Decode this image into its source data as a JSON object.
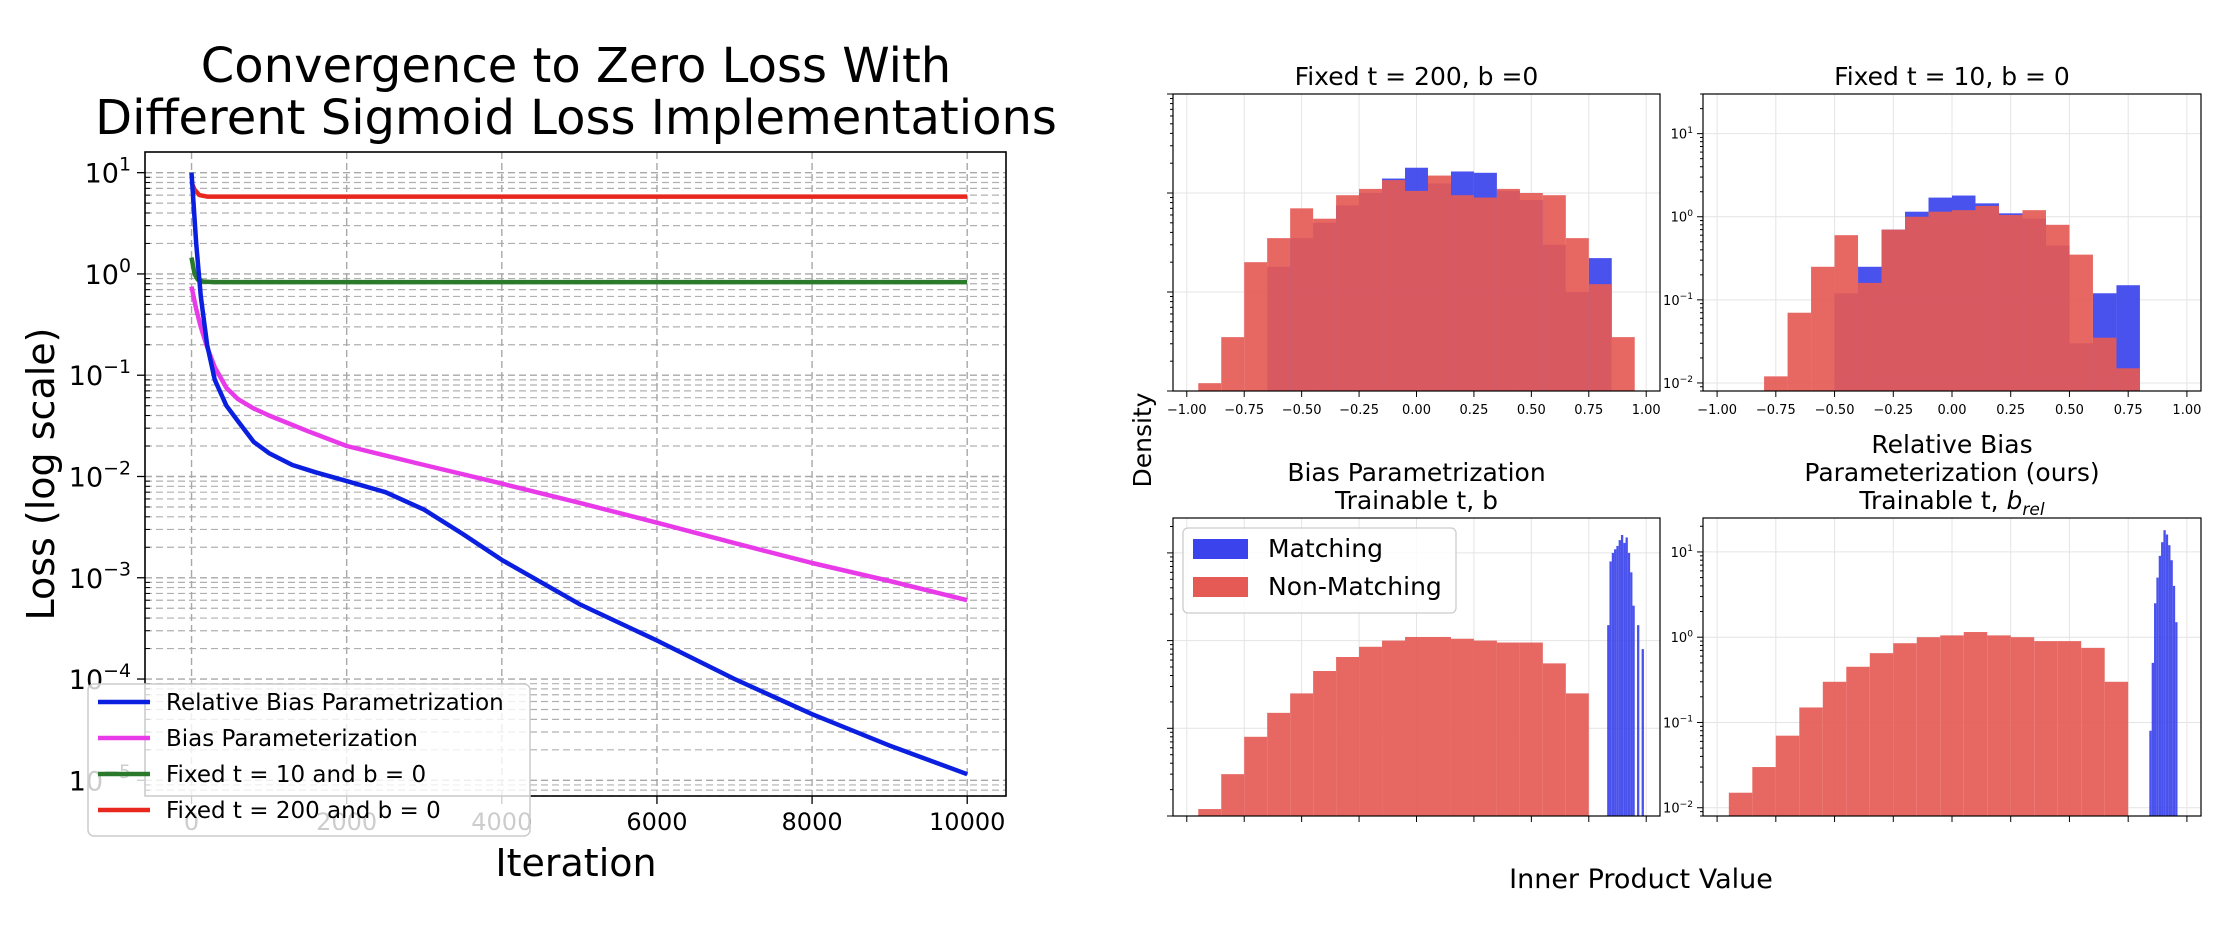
{
  "chart_data": [
    {
      "type": "line",
      "title": [
        "Convergence to Zero Loss With",
        "Different Sigmoid Loss Implementations"
      ],
      "xlabel": "Iteration",
      "ylabel": "Loss (log scale)",
      "yscale": "log",
      "xlim": [
        -600,
        10500
      ],
      "ylim": [
        7e-06,
        16
      ],
      "xticks": [
        0,
        2000,
        4000,
        6000,
        8000,
        10000
      ],
      "xtick_labels": [
        "0",
        "2000",
        "4000",
        "6000",
        "8000",
        "10000"
      ],
      "yticks": [
        1e-05,
        0.0001,
        0.001,
        0.01,
        0.1,
        1,
        10
      ],
      "ytick_labels": [
        {
          "base": "10",
          "exp": "−5"
        },
        {
          "base": "10",
          "exp": "−4"
        },
        {
          "base": "10",
          "exp": "−3"
        },
        {
          "base": "10",
          "exp": "−2"
        },
        {
          "base": "10",
          "exp": "−1"
        },
        {
          "base": "10",
          "exp": "0"
        },
        {
          "base": "10",
          "exp": "1"
        }
      ],
      "grid": true,
      "legend_position": "lower-left",
      "series": [
        {
          "name": "Relative Bias Parametrization",
          "color": "#0b1fe0",
          "x": [
            0,
            60,
            120,
            200,
            300,
            450,
            600,
            800,
            1000,
            1300,
            1600,
            2000,
            2500,
            3000,
            3500,
            4000,
            5000,
            6000,
            7000,
            8000,
            9000,
            10000
          ],
          "y": [
            10,
            2.0,
            0.6,
            0.2,
            0.09,
            0.05,
            0.035,
            0.022,
            0.017,
            0.013,
            0.011,
            0.009,
            0.007,
            0.0047,
            0.0027,
            0.0015,
            0.00055,
            0.00024,
            0.0001,
            4.5e-05,
            2.2e-05,
            1.15e-05
          ]
        },
        {
          "name": "Bias Parameterization",
          "color": "#e83ae8",
          "x": [
            0,
            60,
            120,
            200,
            300,
            450,
            600,
            800,
            1000,
            1500,
            2000,
            3000,
            4000,
            5000,
            6000,
            7000,
            8000,
            9000,
            10000
          ],
          "y": [
            0.75,
            0.45,
            0.3,
            0.19,
            0.12,
            0.075,
            0.058,
            0.047,
            0.04,
            0.028,
            0.02,
            0.013,
            0.0085,
            0.0055,
            0.0035,
            0.0022,
            0.0014,
            0.00093,
            0.0006
          ]
        },
        {
          "name": "Fixed t = 10 and b = 0",
          "color": "#2b7a2b",
          "x": [
            0,
            40,
            80,
            150,
            300,
            1000,
            10000
          ],
          "y": [
            1.45,
            1.0,
            0.88,
            0.84,
            0.83,
            0.83,
            0.83
          ]
        },
        {
          "name": "Fixed t = 200 and b = 0",
          "color": "#e8281e",
          "x": [
            0,
            40,
            100,
            200,
            400,
            10000
          ],
          "y": [
            8.0,
            6.8,
            6.0,
            5.8,
            5.8,
            5.8
          ]
        }
      ]
    },
    {
      "type": "histogram",
      "title": [
        "Fixed t = 200, b =0"
      ],
      "yscale": "log",
      "xticks": [
        -1.0,
        -0.75,
        -0.5,
        -0.25,
        0.0,
        0.25,
        0.5,
        0.75,
        1.0
      ],
      "xtick_labels": [
        "−1.00",
        "−0.75",
        "−0.50",
        "−0.25",
        "0.00",
        "0.25",
        "0.50",
        "0.75",
        "1.00"
      ],
      "show_xtick_labels": true,
      "show_ytick_labels": false,
      "ylim": [
        0.01,
        10
      ],
      "series": [
        {
          "name": "Matching",
          "color": "#3b43ec",
          "bin_edges": [
            -0.65,
            -0.55,
            -0.45,
            -0.35,
            -0.25,
            -0.15,
            -0.05,
            0.05,
            0.15,
            0.25,
            0.35,
            0.45,
            0.55,
            0.65,
            0.75,
            0.85
          ],
          "heights": [
            0.18,
            0.35,
            0.5,
            0.75,
            1.0,
            1.4,
            1.8,
            1.25,
            1.65,
            1.6,
            1.05,
            0.85,
            0.3,
            0.1,
            0.22
          ]
        },
        {
          "name": "Non-Matching",
          "color": "#e55a55",
          "bin_edges": [
            -0.95,
            -0.85,
            -0.75,
            -0.65,
            -0.55,
            -0.45,
            -0.35,
            -0.25,
            -0.15,
            -0.05,
            0.05,
            0.15,
            0.25,
            0.35,
            0.45,
            0.55,
            0.65,
            0.75,
            0.85,
            0.95
          ],
          "heights": [
            0.012,
            0.035,
            0.2,
            0.35,
            0.7,
            0.55,
            0.95,
            1.1,
            1.35,
            1.05,
            1.5,
            0.95,
            0.9,
            1.1,
            1.0,
            0.95,
            0.35,
            0.12,
            0.035
          ]
        }
      ]
    },
    {
      "type": "histogram",
      "title": [
        "Fixed t = 10, b = 0"
      ],
      "yscale": "log",
      "xticks": [
        -1.0,
        -0.75,
        -0.5,
        -0.25,
        0.0,
        0.25,
        0.5,
        0.75,
        1.0
      ],
      "xtick_labels": [
        "−1.00",
        "−0.75",
        "−0.50",
        "−0.25",
        "0.00",
        "0.25",
        "0.50",
        "0.75",
        "1.00"
      ],
      "show_xtick_labels": true,
      "show_ytick_labels": true,
      "ylim": [
        0.008,
        30
      ],
      "ytick_values": [
        0.01,
        0.1,
        1,
        10
      ],
      "ytick_labels": [
        {
          "base": "10",
          "exp": "−2"
        },
        {
          "base": "10",
          "exp": "−1"
        },
        {
          "base": "10",
          "exp": "0"
        },
        {
          "base": "10",
          "exp": "1"
        }
      ],
      "series": [
        {
          "name": "Matching",
          "color": "#3b43ec",
          "bin_edges": [
            -0.5,
            -0.4,
            -0.3,
            -0.2,
            -0.1,
            0.0,
            0.1,
            0.2,
            0.3,
            0.4,
            0.5,
            0.6,
            0.7,
            0.8
          ],
          "heights": [
            0.12,
            0.25,
            0.7,
            1.15,
            1.7,
            1.8,
            1.45,
            1.1,
            0.95,
            0.45,
            0.03,
            0.12,
            0.15
          ]
        },
        {
          "name": "Non-Matching",
          "color": "#e55a55",
          "bin_edges": [
            -0.8,
            -0.7,
            -0.6,
            -0.5,
            -0.4,
            -0.3,
            -0.2,
            -0.1,
            0.0,
            0.1,
            0.2,
            0.3,
            0.4,
            0.5,
            0.6,
            0.7,
            0.8
          ],
          "heights": [
            0.012,
            0.07,
            0.25,
            0.6,
            0.16,
            0.7,
            1.0,
            1.15,
            1.2,
            1.35,
            1.05,
            1.2,
            0.8,
            0.35,
            0.035,
            0.015
          ]
        }
      ]
    },
    {
      "type": "histogram",
      "title": [
        "Bias Parametrization",
        "Trainable t, b"
      ],
      "yscale": "log",
      "xticks": [
        -1.0,
        -0.75,
        -0.5,
        -0.25,
        0.0,
        0.25,
        0.5,
        0.75,
        1.0
      ],
      "show_xtick_labels": false,
      "show_ytick_labels": false,
      "ylim": [
        0.01,
        25
      ],
      "legend": [
        "Matching",
        "Non-Matching"
      ],
      "series": [
        {
          "name": "Non-Matching",
          "color": "#e55a55",
          "bin_edges": [
            -0.95,
            -0.85,
            -0.75,
            -0.65,
            -0.55,
            -0.45,
            -0.35,
            -0.25,
            -0.15,
            -0.05,
            0.05,
            0.15,
            0.25,
            0.35,
            0.45,
            0.55,
            0.65,
            0.75
          ],
          "heights": [
            0.012,
            0.03,
            0.08,
            0.15,
            0.25,
            0.45,
            0.65,
            0.85,
            1.0,
            1.1,
            1.1,
            1.05,
            1.0,
            0.95,
            0.95,
            0.55,
            0.25
          ]
        },
        {
          "name": "Matching",
          "color": "#3b43ec",
          "bin_edges": [
            0.83,
            0.84,
            0.85,
            0.86,
            0.87,
            0.88,
            0.89,
            0.9,
            0.91,
            0.92,
            0.93,
            0.94,
            0.95,
            0.96,
            0.97,
            0.98,
            0.99
          ],
          "heights": [
            1.5,
            8.0,
            10.0,
            11.0,
            12.0,
            14.0,
            16.0,
            13.0,
            15.0,
            10.0,
            6.0,
            2.5,
            0,
            1.5,
            0,
            0.8
          ]
        }
      ]
    },
    {
      "type": "histogram",
      "title": [
        "Relative Bias",
        "Parameterization (ours)",
        "Trainable t, b_rel"
      ],
      "yscale": "log",
      "xticks": [
        -1.0,
        -0.75,
        -0.5,
        -0.25,
        0.0,
        0.25,
        0.5,
        0.75,
        1.0
      ],
      "show_xtick_labels": false,
      "show_ytick_labels": true,
      "ylim": [
        0.008,
        25
      ],
      "ytick_values": [
        0.01,
        0.1,
        1,
        10
      ],
      "ytick_labels": [
        {
          "base": "10",
          "exp": "−2"
        },
        {
          "base": "10",
          "exp": "−1"
        },
        {
          "base": "10",
          "exp": "0"
        },
        {
          "base": "10",
          "exp": "1"
        }
      ],
      "series": [
        {
          "name": "Non-Matching",
          "color": "#e55a55",
          "bin_edges": [
            -0.95,
            -0.85,
            -0.75,
            -0.65,
            -0.55,
            -0.45,
            -0.35,
            -0.25,
            -0.15,
            -0.05,
            0.05,
            0.15,
            0.25,
            0.35,
            0.45,
            0.55,
            0.65,
            0.75
          ],
          "heights": [
            0.015,
            0.03,
            0.07,
            0.15,
            0.3,
            0.45,
            0.65,
            0.85,
            1.0,
            1.05,
            1.15,
            1.05,
            1.0,
            0.9,
            0.9,
            0.75,
            0.3
          ]
        },
        {
          "name": "Matching",
          "color": "#3b43ec",
          "bin_edges": [
            0.84,
            0.85,
            0.86,
            0.87,
            0.88,
            0.89,
            0.9,
            0.91,
            0.92,
            0.93,
            0.94,
            0.95,
            0.96
          ],
          "heights": [
            0.08,
            0.5,
            2.5,
            5.0,
            9.0,
            13.0,
            18.0,
            16.0,
            12.0,
            8.0,
            4.0,
            1.5
          ]
        }
      ]
    }
  ],
  "shared_labels": {
    "ylabel": "Density",
    "xlabel": "Inner Product Value"
  }
}
